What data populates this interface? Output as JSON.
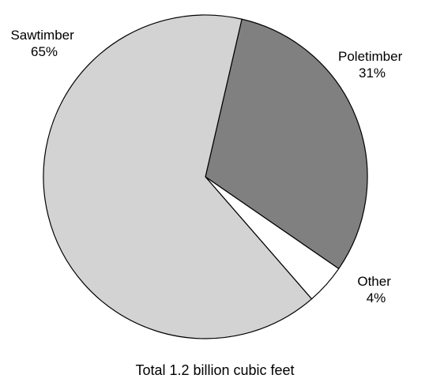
{
  "chart_data": {
    "type": "pie",
    "caption": "Total 1.2 billion cubic feet",
    "slices": [
      {
        "name": "Poletimber",
        "percent_label": "31%",
        "value": 31,
        "color": "#808080"
      },
      {
        "name": "Other",
        "percent_label": "4%",
        "value": 4,
        "color": "#ffffff"
      },
      {
        "name": "Sawtimber",
        "percent_label": "65%",
        "value": 65,
        "color": "#d3d3d3"
      }
    ],
    "start_angle_deg": 13,
    "direction": "clockwise",
    "legend": "none",
    "slice_edge_color": "#000000"
  }
}
